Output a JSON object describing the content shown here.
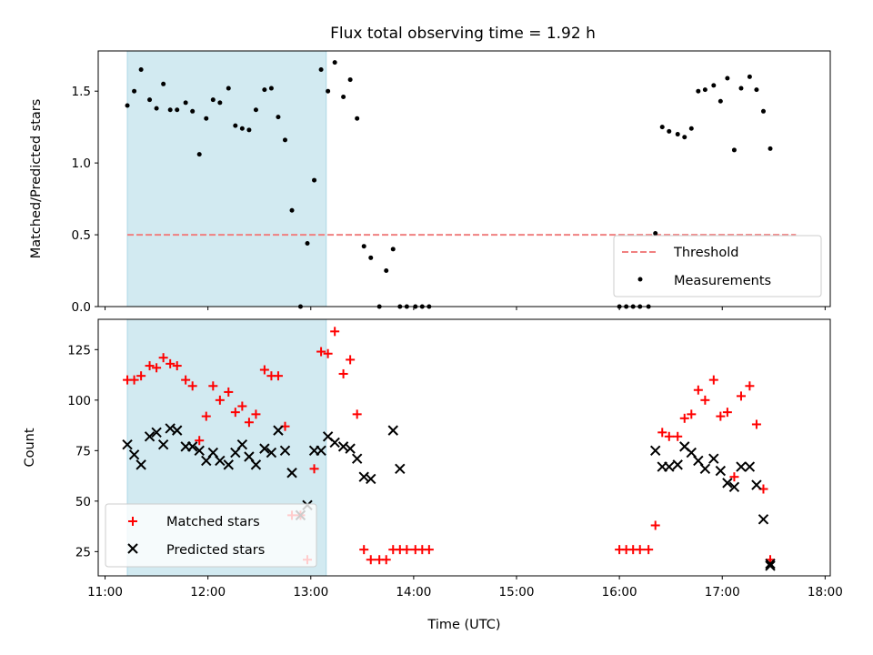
{
  "title": "Flux total observing time = 1.92 h",
  "colors": {
    "band": "#add8e6",
    "threshold": "#f08080",
    "measurements": "#000000",
    "matched": "#ff0000",
    "predicted": "#000000"
  },
  "chart_data": [
    {
      "type": "scatter",
      "panel": "top",
      "ylabel": "Matched/Predicted stars",
      "xlim": [
        "10:56",
        "18:03"
      ],
      "ylim": [
        0,
        1.78
      ],
      "yticks": [
        0.0,
        0.5,
        1.0,
        1.5
      ],
      "ytick_labels": [
        "0.0",
        "0.5",
        "1.0",
        "1.5"
      ],
      "shaded_span": [
        "11:13",
        "13:09"
      ],
      "threshold": {
        "name": "Threshold",
        "value": 0.5,
        "x": [
          "11:13",
          "17:43"
        ],
        "style": "dashed"
      },
      "legend": {
        "placement": "lower right",
        "entries": [
          "Threshold",
          "Measurements"
        ]
      },
      "series": [
        {
          "name": "Measurements",
          "marker": "dot",
          "points": [
            [
              "11:13",
              1.4
            ],
            [
              "11:17",
              1.5
            ],
            [
              "11:21",
              1.65
            ],
            [
              "11:26",
              1.44
            ],
            [
              "11:30",
              1.38
            ],
            [
              "11:34",
              1.55
            ],
            [
              "11:38",
              1.37
            ],
            [
              "11:42",
              1.37
            ],
            [
              "11:47",
              1.42
            ],
            [
              "11:51",
              1.36
            ],
            [
              "11:55",
              1.06
            ],
            [
              "11:59",
              1.31
            ],
            [
              "12:03",
              1.44
            ],
            [
              "12:07",
              1.42
            ],
            [
              "12:12",
              1.52
            ],
            [
              "12:16",
              1.26
            ],
            [
              "12:20",
              1.24
            ],
            [
              "12:24",
              1.23
            ],
            [
              "12:28",
              1.37
            ],
            [
              "12:33",
              1.51
            ],
            [
              "12:37",
              1.52
            ],
            [
              "12:41",
              1.32
            ],
            [
              "12:45",
              1.16
            ],
            [
              "12:49",
              0.67
            ],
            [
              "12:54",
              0.0
            ],
            [
              "12:58",
              0.44
            ],
            [
              "13:02",
              0.88
            ],
            [
              "13:06",
              1.65
            ],
            [
              "13:10",
              1.5
            ],
            [
              "13:14",
              1.7
            ],
            [
              "13:19",
              1.46
            ],
            [
              "13:23",
              1.58
            ],
            [
              "13:27",
              1.31
            ],
            [
              "13:31",
              0.42
            ],
            [
              "13:35",
              0.34
            ],
            [
              "13:40",
              0.0
            ],
            [
              "13:44",
              0.25
            ],
            [
              "13:48",
              0.4
            ],
            [
              "13:52",
              0.0
            ],
            [
              "13:56",
              0.0
            ],
            [
              "14:01",
              0.0
            ],
            [
              "14:05",
              0.0
            ],
            [
              "14:09",
              0.0
            ],
            [
              "16:00",
              0.0
            ],
            [
              "16:04",
              0.0
            ],
            [
              "16:08",
              0.0
            ],
            [
              "16:12",
              0.0
            ],
            [
              "16:17",
              0.0
            ],
            [
              "16:21",
              0.51
            ],
            [
              "16:25",
              1.25
            ],
            [
              "16:29",
              1.22
            ],
            [
              "16:34",
              1.2
            ],
            [
              "16:38",
              1.18
            ],
            [
              "16:42",
              1.24
            ],
            [
              "16:46",
              1.5
            ],
            [
              "16:50",
              1.51
            ],
            [
              "16:55",
              1.54
            ],
            [
              "16:59",
              1.43
            ],
            [
              "17:03",
              1.59
            ],
            [
              "17:07",
              1.09
            ],
            [
              "17:11",
              1.52
            ],
            [
              "17:16",
              1.6
            ],
            [
              "17:20",
              1.51
            ],
            [
              "17:24",
              1.36
            ],
            [
              "17:28",
              1.1
            ]
          ]
        }
      ]
    },
    {
      "type": "scatter",
      "panel": "bottom",
      "xlabel": "Time (UTC)",
      "ylabel": "Count",
      "xlim": [
        "10:56",
        "18:03"
      ],
      "xticks": [
        "11:00",
        "12:00",
        "13:00",
        "14:00",
        "15:00",
        "16:00",
        "17:00",
        "18:00"
      ],
      "ylim": [
        13,
        140
      ],
      "yticks": [
        25,
        50,
        75,
        100,
        125
      ],
      "ytick_labels": [
        "25",
        "50",
        "75",
        "100",
        "125"
      ],
      "shaded_span": [
        "11:13",
        "13:09"
      ],
      "legend": {
        "placement": "lower left",
        "entries": [
          "Matched stars",
          "Predicted stars"
        ]
      },
      "series": [
        {
          "name": "Matched stars",
          "marker": "plus",
          "points": [
            [
              "11:13",
              110
            ],
            [
              "11:17",
              110
            ],
            [
              "11:21",
              112
            ],
            [
              "11:26",
              117
            ],
            [
              "11:30",
              116
            ],
            [
              "11:34",
              121
            ],
            [
              "11:38",
              118
            ],
            [
              "11:42",
              117
            ],
            [
              "11:47",
              110
            ],
            [
              "11:51",
              107
            ],
            [
              "11:55",
              80
            ],
            [
              "11:59",
              92
            ],
            [
              "12:03",
              107
            ],
            [
              "12:07",
              100
            ],
            [
              "12:12",
              104
            ],
            [
              "12:16",
              94
            ],
            [
              "12:20",
              97
            ],
            [
              "12:24",
              89
            ],
            [
              "12:28",
              93
            ],
            [
              "12:33",
              115
            ],
            [
              "12:37",
              112
            ],
            [
              "12:41",
              112
            ],
            [
              "12:45",
              87
            ],
            [
              "12:49",
              43
            ],
            [
              "12:54",
              43
            ],
            [
              "12:58",
              21
            ],
            [
              "13:02",
              66
            ],
            [
              "13:06",
              124
            ],
            [
              "13:10",
              123
            ],
            [
              "13:14",
              134
            ],
            [
              "13:19",
              113
            ],
            [
              "13:23",
              120
            ],
            [
              "13:27",
              93
            ],
            [
              "13:31",
              26
            ],
            [
              "13:35",
              21
            ],
            [
              "13:40",
              21
            ],
            [
              "13:44",
              21
            ],
            [
              "13:48",
              26
            ],
            [
              "13:52",
              26
            ],
            [
              "13:56",
              26
            ],
            [
              "14:01",
              26
            ],
            [
              "14:05",
              26
            ],
            [
              "14:09",
              26
            ],
            [
              "16:00",
              26
            ],
            [
              "16:04",
              26
            ],
            [
              "16:08",
              26
            ],
            [
              "16:12",
              26
            ],
            [
              "16:17",
              26
            ],
            [
              "16:21",
              38
            ],
            [
              "16:25",
              84
            ],
            [
              "16:29",
              82
            ],
            [
              "16:34",
              82
            ],
            [
              "16:38",
              91
            ],
            [
              "16:42",
              93
            ],
            [
              "16:46",
              105
            ],
            [
              "16:50",
              100
            ],
            [
              "16:55",
              110
            ],
            [
              "16:59",
              92
            ],
            [
              "17:03",
              94
            ],
            [
              "17:07",
              62
            ],
            [
              "17:11",
              102
            ],
            [
              "17:16",
              107
            ],
            [
              "17:20",
              88
            ],
            [
              "17:24",
              56
            ],
            [
              "17:28",
              21
            ]
          ]
        },
        {
          "name": "Predicted stars",
          "marker": "x",
          "points": [
            [
              "11:13",
              78
            ],
            [
              "11:17",
              73
            ],
            [
              "11:21",
              68
            ],
            [
              "11:26",
              82
            ],
            [
              "11:30",
              84
            ],
            [
              "11:34",
              78
            ],
            [
              "11:38",
              86
            ],
            [
              "11:42",
              85
            ],
            [
              "11:47",
              77
            ],
            [
              "11:51",
              77
            ],
            [
              "11:55",
              75
            ],
            [
              "11:59",
              70
            ],
            [
              "12:03",
              74
            ],
            [
              "12:07",
              70
            ],
            [
              "12:12",
              68
            ],
            [
              "12:16",
              74
            ],
            [
              "12:20",
              78
            ],
            [
              "12:24",
              72
            ],
            [
              "12:28",
              68
            ],
            [
              "12:33",
              76
            ],
            [
              "12:37",
              74
            ],
            [
              "12:41",
              85
            ],
            [
              "12:45",
              75
            ],
            [
              "12:49",
              64
            ],
            [
              "12:54",
              43
            ],
            [
              "12:58",
              48
            ],
            [
              "13:02",
              75
            ],
            [
              "13:06",
              75
            ],
            [
              "13:10",
              82
            ],
            [
              "13:14",
              79
            ],
            [
              "13:19",
              77
            ],
            [
              "13:23",
              76
            ],
            [
              "13:27",
              71
            ],
            [
              "13:31",
              62
            ],
            [
              "13:35",
              61
            ],
            [
              "13:48",
              85
            ],
            [
              "13:52",
              66
            ],
            [
              "16:21",
              75
            ],
            [
              "16:25",
              67
            ],
            [
              "16:29",
              67
            ],
            [
              "16:34",
              68
            ],
            [
              "16:38",
              77
            ],
            [
              "16:42",
              74
            ],
            [
              "16:46",
              70
            ],
            [
              "16:50",
              66
            ],
            [
              "16:55",
              71
            ],
            [
              "16:59",
              65
            ],
            [
              "17:03",
              59
            ],
            [
              "17:07",
              57
            ],
            [
              "17:11",
              67
            ],
            [
              "17:16",
              67
            ],
            [
              "17:20",
              58
            ],
            [
              "17:24",
              41
            ],
            [
              "17:28",
              19
            ],
            [
              "17:28",
              18
            ]
          ]
        }
      ]
    }
  ]
}
